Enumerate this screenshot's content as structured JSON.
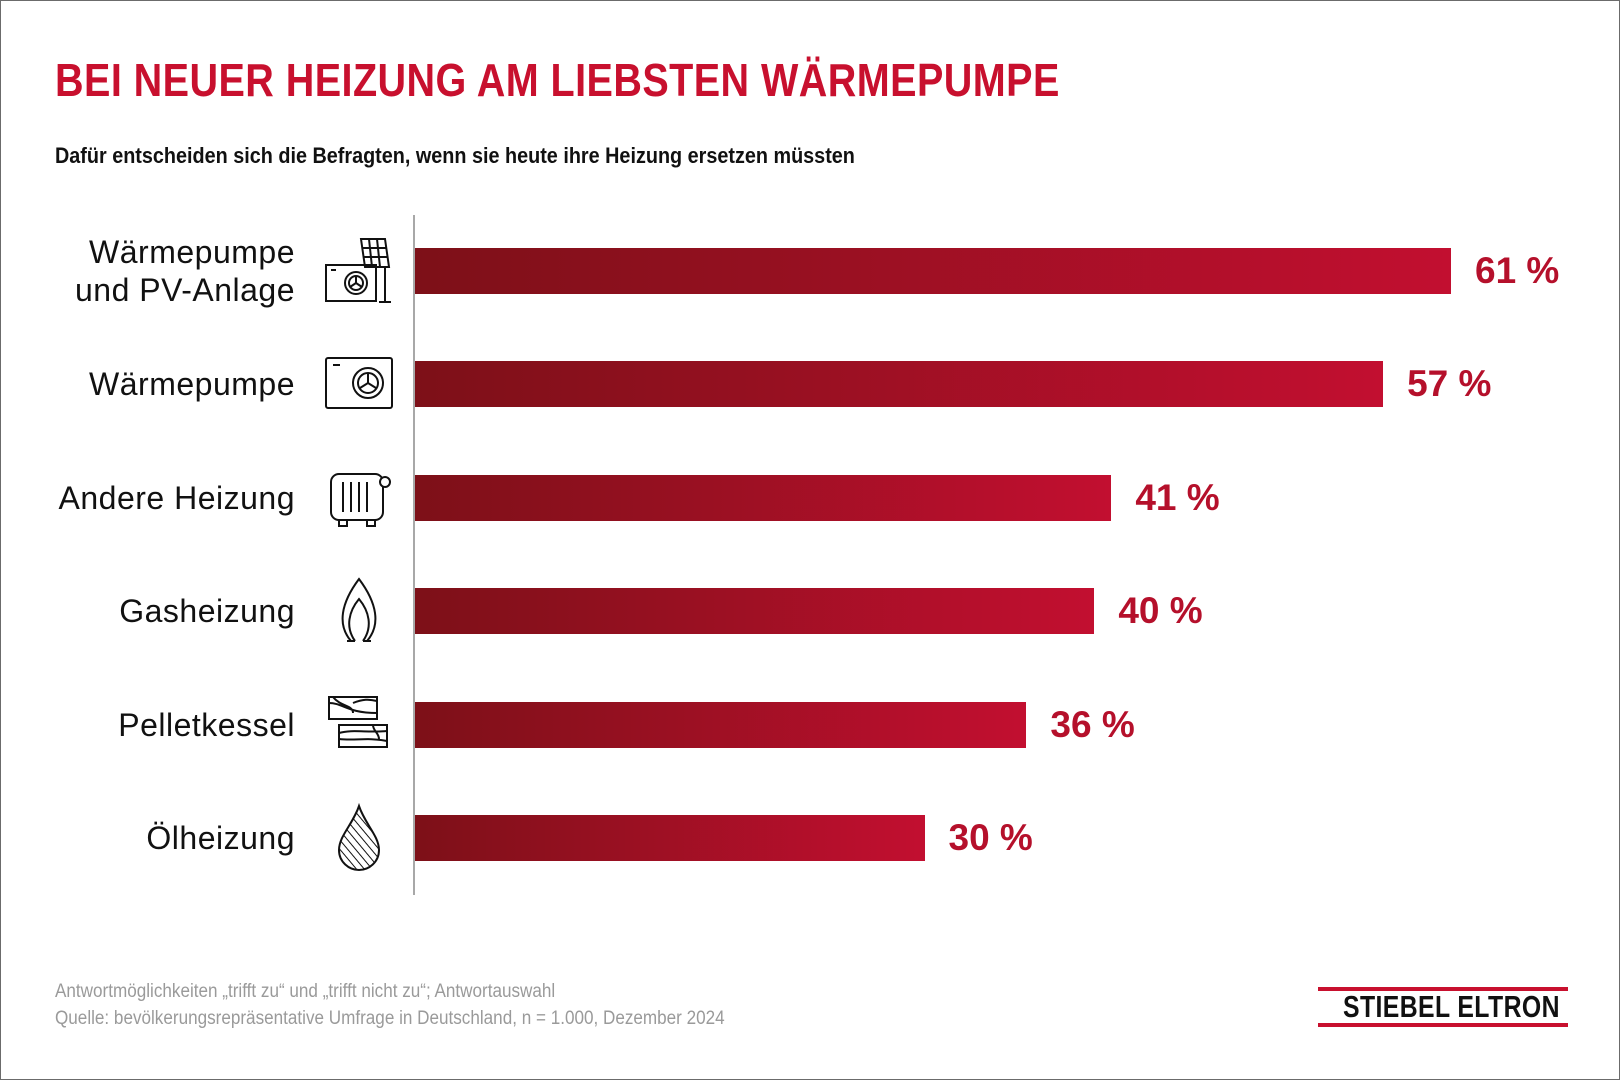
{
  "header": {
    "title": "BEI NEUER HEIZUNG AM LIEBSTEN WÄRMEPUMPE",
    "subtitle": "Dafür entscheiden sich die Befragten, wenn sie heute ihre Heizung ersetzen müssten"
  },
  "chart_data": {
    "type": "bar",
    "orientation": "horizontal",
    "title": "BEI NEUER HEIZUNG AM LIEBSTEN WÄRMEPUMPE",
    "subtitle": "Dafür entscheiden sich die Befragten, wenn sie heute ihre Heizung ersetzen müssten",
    "categories": [
      "Wärmepumpe\nund PV-Anlage",
      "Wärmepumpe",
      "Andere Heizung",
      "Gasheizung",
      "Pelletkessel",
      "Ölheizung"
    ],
    "category_lines": [
      [
        "Wärmepumpe",
        "und PV-Anlage"
      ],
      [
        "Wärmepumpe"
      ],
      [
        "Andere Heizung"
      ],
      [
        "Gasheizung"
      ],
      [
        "Pelletkessel"
      ],
      [
        "Ölheizung"
      ]
    ],
    "icons": [
      "heat-pump-solar-panel-icon",
      "heat-pump-icon",
      "radiator-icon",
      "gas-flame-icon",
      "wood-pellet-icon",
      "oil-drop-icon"
    ],
    "values": [
      61,
      57,
      41,
      40,
      36,
      30
    ],
    "value_suffix": " %",
    "xlim": [
      0,
      61
    ],
    "grid": false,
    "data_labels": true,
    "xlabel": "",
    "ylabel": ""
  },
  "footer": {
    "note": "Antwortmöglichkeiten „trifft zu“ und „trifft nicht zu“; Antwortauswahl",
    "source": "Quelle: bevölkerungsrepräsentative Umfrage in Deutschland, n = 1.000, Dezember 2024"
  },
  "logo": {
    "text": "STIEBEL ELTRON"
  },
  "colors": {
    "title": "#c8102e",
    "bar_start": "#7d1018",
    "bar_end": "#c20f30",
    "value_label": "#b5102b",
    "logo_red": "#c8102e"
  }
}
